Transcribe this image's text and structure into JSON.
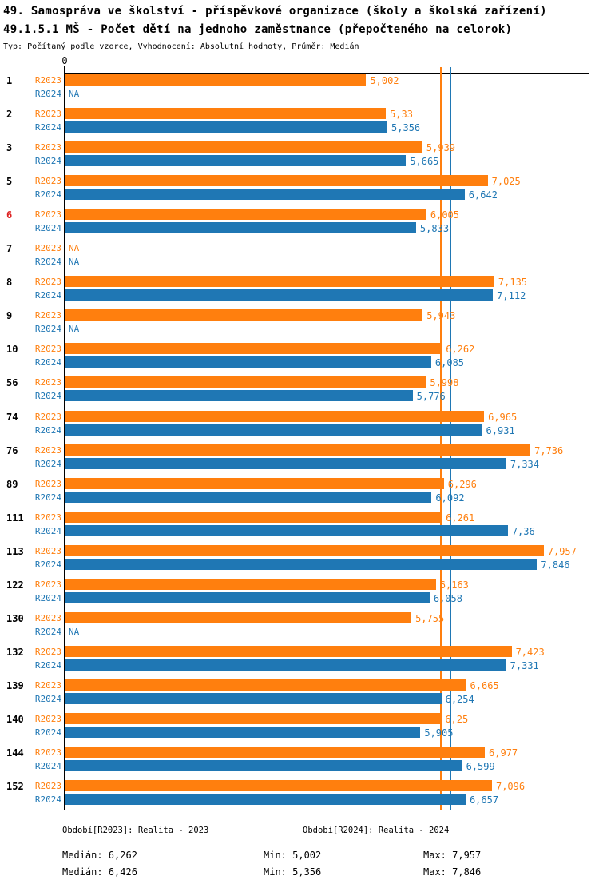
{
  "title": {
    "line1": "49. Samospráva ve školství - příspěvkové organizace (školy a školská zařízení)",
    "line2": "49.1.5.1 MŠ - Počet dětí na jednoho zaměstnance (přepočteného na celorok)",
    "line3": "Typ: Počítaný podle vzorce, Vyhodnocení: Absolutní hodnoty, Průměr: Medián"
  },
  "chart_data": {
    "type": "bar",
    "orientation": "horizontal",
    "title": "49.1.5.1 MŠ - Počet dětí na jednoho zaměstnance (přepočteného na celorok)",
    "axis": {
      "zero_label": "0",
      "xlim": [
        0,
        8.7
      ],
      "grid": false
    },
    "categories": [
      "1",
      "2",
      "3",
      "5",
      "6",
      "7",
      "8",
      "9",
      "10",
      "56",
      "74",
      "76",
      "89",
      "111",
      "113",
      "122",
      "130",
      "132",
      "139",
      "140",
      "144",
      "152"
    ],
    "highlighted_categories": [
      "6"
    ],
    "highlight_color": "#dd2222",
    "series": [
      {
        "name": "R2023",
        "color": "#ff7f0e",
        "values": [
          5.002,
          5.33,
          5.939,
          7.025,
          6.005,
          null,
          7.135,
          5.943,
          6.262,
          5.998,
          6.965,
          7.736,
          6.296,
          6.261,
          7.957,
          6.163,
          5.755,
          7.423,
          6.665,
          6.25,
          6.977,
          7.096
        ],
        "labels": [
          "5,002",
          "5,33",
          "5,939",
          "7,025",
          "6,005",
          "NA",
          "7,135",
          "5,943",
          "6,262",
          "5,998",
          "6,965",
          "7,736",
          "6,296",
          "6,261",
          "7,957",
          "6,163",
          "5,755",
          "7,423",
          "6,665",
          "6,25",
          "6,977",
          "7,096"
        ]
      },
      {
        "name": "R2024",
        "color": "#1f77b4",
        "values": [
          null,
          5.356,
          5.665,
          6.642,
          5.833,
          null,
          7.112,
          null,
          6.085,
          5.776,
          6.931,
          7.334,
          6.092,
          7.36,
          7.846,
          6.058,
          null,
          7.331,
          6.254,
          5.905,
          6.599,
          6.657
        ],
        "labels": [
          "NA",
          "5,356",
          "5,665",
          "6,642",
          "5,833",
          "NA",
          "7,112",
          "NA",
          "6,085",
          "5,776",
          "6,931",
          "7,334",
          "6,092",
          "7,36",
          "7,846",
          "6,058",
          "NA",
          "7,331",
          "6,254",
          "5,905",
          "6,599",
          "6,657"
        ]
      }
    ],
    "median_lines": [
      {
        "series": "R2023",
        "value": 6.262
      },
      {
        "series": "R2024",
        "value": 6.426
      }
    ]
  },
  "legend": {
    "r2023": "Období[R2023]: Realita - 2023",
    "r2024": "Období[R2024]: Realita - 2024"
  },
  "stats": {
    "r2023": {
      "median": "Medián: 6,262",
      "min": "Min: 5,002",
      "max": "Max: 7,957"
    },
    "r2024": {
      "median": "Medián: 6,426",
      "min": "Min: 5,356",
      "max": "Max: 7,846"
    }
  }
}
